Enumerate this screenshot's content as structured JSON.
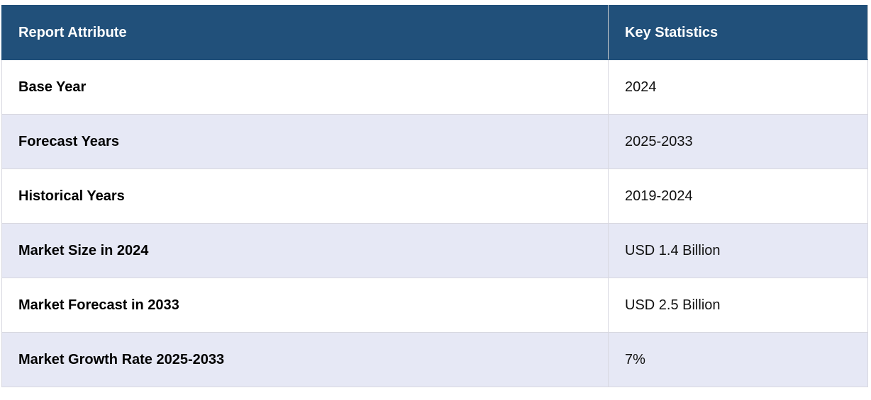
{
  "table": {
    "header": [
      "Report Attribute",
      "Key Statistics"
    ],
    "rows": [
      [
        "Base Year",
        "2024"
      ],
      [
        "Forecast Years",
        "2025-2033"
      ],
      [
        "Historical Years",
        "2019-2024"
      ],
      [
        "Market Size in 2024",
        "USD 1.4 Billion"
      ],
      [
        "Market Forecast in 2033",
        "USD 2.5 Billion"
      ],
      [
        "Market Growth Rate 2025-2033",
        "7%"
      ]
    ]
  }
}
